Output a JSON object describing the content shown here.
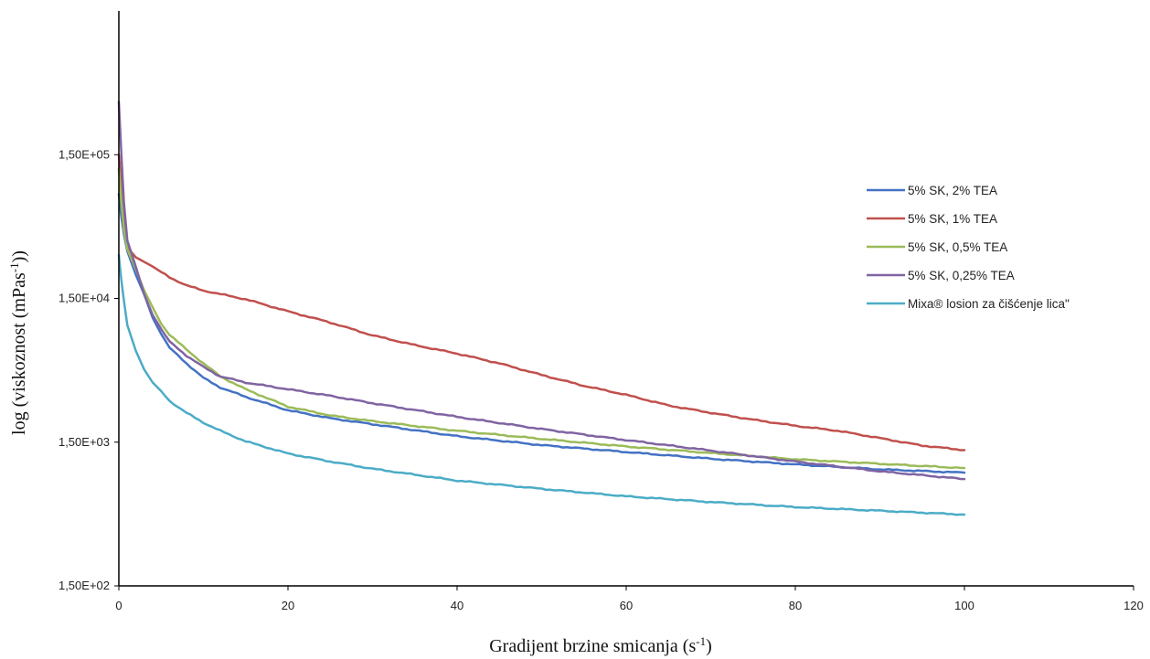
{
  "chart_data": {
    "type": "line",
    "title": "",
    "xlabel": {
      "base": "Gradijent brzine smicanja (s",
      "sup": "-1",
      "tail": ")"
    },
    "ylabel": {
      "base": "log (viskoznost (mPas",
      "sup": "-1",
      "tail": "))"
    },
    "x_scale": "linear",
    "y_scale": "log",
    "xlim": [
      0,
      120
    ],
    "ylim": [
      150,
      1500000
    ],
    "x_ticks": [
      0,
      20,
      40,
      60,
      80,
      100,
      120
    ],
    "y_ticks": [
      150,
      1500,
      15000,
      150000
    ],
    "y_tick_labels": [
      "1,50E+02",
      "1,50E+03",
      "1,50E+04",
      "1,50E+05"
    ],
    "grid": false,
    "legend_position": "right",
    "series": [
      {
        "name": "5% SK, 2% TEA",
        "color": "#4472C4",
        "points": [
          [
            0,
            80000
          ],
          [
            0.3,
            55000
          ],
          [
            0.6,
            42000
          ],
          [
            1,
            32000
          ],
          [
            2,
            22000
          ],
          [
            3,
            16000
          ],
          [
            4,
            11000
          ],
          [
            5,
            8500
          ],
          [
            6,
            6800
          ],
          [
            8,
            5300
          ],
          [
            10,
            4200
          ],
          [
            12,
            3600
          ],
          [
            15,
            3100
          ],
          [
            20,
            2500
          ],
          [
            25,
            2200
          ],
          [
            30,
            2000
          ],
          [
            40,
            1650
          ],
          [
            50,
            1430
          ],
          [
            60,
            1280
          ],
          [
            70,
            1150
          ],
          [
            80,
            1050
          ],
          [
            90,
            970
          ],
          [
            100,
            920
          ]
        ]
      },
      {
        "name": "5% SK, 1% TEA",
        "color": "#C0504D",
        "points": [
          [
            0,
            150000
          ],
          [
            0.3,
            90000
          ],
          [
            0.6,
            50000
          ],
          [
            1,
            34000
          ],
          [
            2,
            29000
          ],
          [
            4,
            25000
          ],
          [
            6,
            21000
          ],
          [
            8,
            18500
          ],
          [
            10,
            17000
          ],
          [
            15,
            14800
          ],
          [
            20,
            12200
          ],
          [
            25,
            10200
          ],
          [
            30,
            8300
          ],
          [
            35,
            7100
          ],
          [
            40,
            6200
          ],
          [
            45,
            5300
          ],
          [
            50,
            4400
          ],
          [
            55,
            3700
          ],
          [
            60,
            3200
          ],
          [
            65,
            2700
          ],
          [
            70,
            2400
          ],
          [
            75,
            2150
          ],
          [
            80,
            1950
          ],
          [
            85,
            1800
          ],
          [
            90,
            1600
          ],
          [
            95,
            1420
          ],
          [
            100,
            1320
          ]
        ]
      },
      {
        "name": "5% SK, 0,5% TEA",
        "color": "#9BBB59",
        "points": [
          [
            0,
            120000
          ],
          [
            0.3,
            70000
          ],
          [
            0.6,
            45000
          ],
          [
            1,
            33000
          ],
          [
            2,
            24000
          ],
          [
            3,
            17000
          ],
          [
            4,
            13000
          ],
          [
            5,
            10000
          ],
          [
            6,
            8400
          ],
          [
            8,
            6600
          ],
          [
            10,
            5300
          ],
          [
            12,
            4300
          ],
          [
            15,
            3500
          ],
          [
            20,
            2650
          ],
          [
            25,
            2300
          ],
          [
            30,
            2100
          ],
          [
            40,
            1800
          ],
          [
            50,
            1580
          ],
          [
            60,
            1400
          ],
          [
            70,
            1260
          ],
          [
            80,
            1140
          ],
          [
            90,
            1060
          ],
          [
            100,
            990
          ]
        ]
      },
      {
        "name": "5% SK, 0,25% TEA",
        "color": "#8064A2",
        "points": [
          [
            0,
            350000
          ],
          [
            0.3,
            150000
          ],
          [
            0.6,
            70000
          ],
          [
            1,
            38000
          ],
          [
            2,
            25000
          ],
          [
            3,
            16000
          ],
          [
            4,
            11500
          ],
          [
            5,
            9200
          ],
          [
            6,
            7500
          ],
          [
            8,
            6000
          ],
          [
            10,
            5000
          ],
          [
            12,
            4300
          ],
          [
            15,
            3900
          ],
          [
            20,
            3500
          ],
          [
            25,
            3150
          ],
          [
            30,
            2800
          ],
          [
            40,
            2250
          ],
          [
            50,
            1850
          ],
          [
            60,
            1550
          ],
          [
            70,
            1310
          ],
          [
            80,
            1100
          ],
          [
            90,
            940
          ],
          [
            100,
            830
          ]
        ]
      },
      {
        "name": "Mixa® losion za čišćenje lica\"",
        "color": "#4BACC6",
        "points": [
          [
            0,
            30000
          ],
          [
            0.3,
            20000
          ],
          [
            0.6,
            14500
          ],
          [
            1,
            9800
          ],
          [
            2,
            6500
          ],
          [
            3,
            4800
          ],
          [
            4,
            3900
          ],
          [
            5,
            3400
          ],
          [
            6,
            2900
          ],
          [
            8,
            2400
          ],
          [
            10,
            2050
          ],
          [
            12,
            1800
          ],
          [
            15,
            1520
          ],
          [
            20,
            1250
          ],
          [
            25,
            1100
          ],
          [
            30,
            980
          ],
          [
            40,
            810
          ],
          [
            50,
            710
          ],
          [
            60,
            630
          ],
          [
            70,
            575
          ],
          [
            80,
            530
          ],
          [
            90,
            500
          ],
          [
            100,
            470
          ]
        ]
      }
    ]
  }
}
